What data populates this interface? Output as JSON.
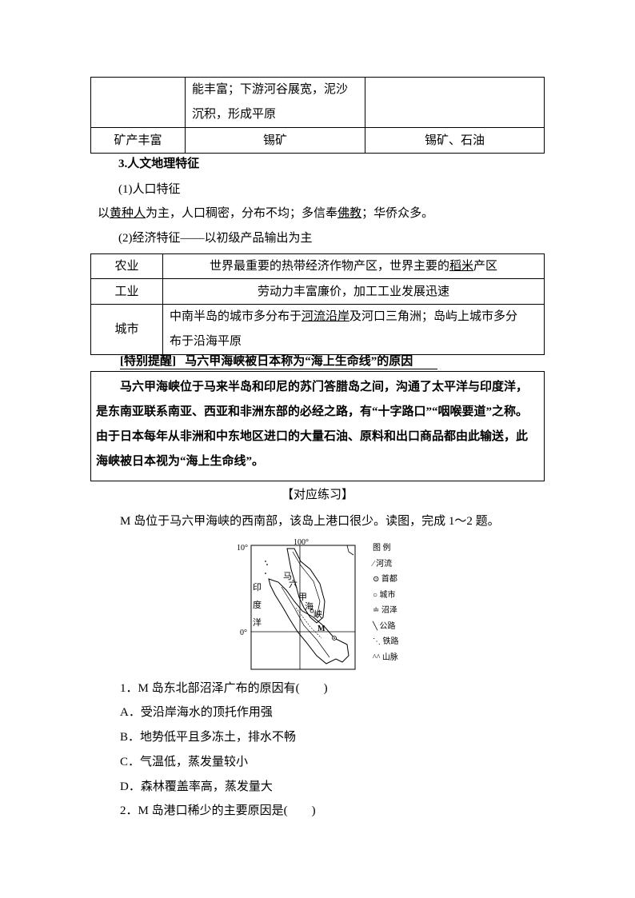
{
  "table1": {
    "row1": {
      "col1": "",
      "col2_line1": "能丰富；下游河谷展宽，泥沙",
      "col2_line2": "沉积，形成平原",
      "col3": ""
    },
    "row2": {
      "col1": "矿产丰富",
      "col2": "锡矿",
      "col3": "锡矿、石油"
    }
  },
  "section3": {
    "heading": "3.人文地理特征",
    "sub1": "(1)人口特征",
    "pop": {
      "pre": "以",
      "u1": "黄种人",
      "mid": "为主，人口稠密，分布不均；多信奉",
      "u2": "佛教",
      "post": "；华侨众多。"
    },
    "sub2": "(2)经济特征——以初级产品输出为主"
  },
  "table2": {
    "rows": [
      {
        "label": "农业",
        "pre": "世界最重要的热带经济作物产区，世界主要的",
        "u": "稻米",
        "post": "产区"
      },
      {
        "label": "工业",
        "text": "劳动力丰富廉价，加工工业发展迅速"
      },
      {
        "label": "城市",
        "pre": "中南半岛的城市多分布于",
        "u": "河流沿岸",
        "post": "及河口三角洲；岛屿上城市多分",
        "line2": "布于沿海平原"
      }
    ]
  },
  "tip": {
    "tag": "[特别提醒]",
    "title": "马六甲海峡被日本称为“海上生命线”的原因",
    "body": "马六甲海峡位于马来半岛和印尼的苏门答腊岛之间，沟通了太平洋与印度洋，是东南亚联系南亚、西亚和非洲东部的必经之路，有“十字路口”“咽喉要道”之称。由于日本每年从非洲和中东地区进口的大量石油、原料和出口商品都由此输送，此海峡被日本视为“海上生命线”。"
  },
  "practice": {
    "heading": "【对应练习】",
    "intro": "M 岛位于马六甲海峡的西南部，该岛上港口很少。读图，完成 1～2 题。"
  },
  "map": {
    "lat_top": "10°",
    "lat_zero": "0°",
    "lon": "100°",
    "ocean": [
      "印",
      "度",
      "洋"
    ],
    "strait": [
      "马",
      "六",
      "甲",
      "海",
      "峡"
    ],
    "island": "M",
    "legend_title": "图  例",
    "legend": [
      {
        "icon": "river-icon",
        "label": "河流"
      },
      {
        "icon": "capital-icon",
        "label": "首都"
      },
      {
        "icon": "city-icon",
        "label": "城市"
      },
      {
        "icon": "swamp-icon",
        "label": "沼泽"
      },
      {
        "icon": "road-icon",
        "label": "公路"
      },
      {
        "icon": "railway-icon",
        "label": "铁路"
      },
      {
        "icon": "mountain-icon",
        "label": "山脉"
      }
    ]
  },
  "questions": [
    {
      "text": "1．M 岛东北部沼泽广布的原因有(　　)"
    },
    {
      "text": "A．受沿岸海水的顶托作用强"
    },
    {
      "text": "B．地势低平且多冻土，排水不畅"
    },
    {
      "text": "C．气温低，蒸发量较小"
    },
    {
      "text": "D．森林覆盖率高，蒸发量大"
    },
    {
      "text": "2．M 岛港口稀少的主要原因是(　　)"
    }
  ]
}
